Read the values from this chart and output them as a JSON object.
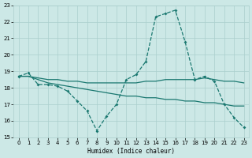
{
  "xlabel": "Humidex (Indice chaleur)",
  "xlim": [
    -0.5,
    23.5
  ],
  "ylim": [
    15,
    23
  ],
  "yticks": [
    15,
    16,
    17,
    18,
    19,
    20,
    21,
    22,
    23
  ],
  "xticks": [
    0,
    1,
    2,
    3,
    4,
    5,
    6,
    7,
    8,
    9,
    10,
    11,
    12,
    13,
    14,
    15,
    16,
    17,
    18,
    19,
    20,
    21,
    22,
    23
  ],
  "bg_color": "#cce8e6",
  "grid_color": "#aacfcd",
  "line_color": "#1a7870",
  "line1_x": [
    0,
    1,
    2,
    3,
    4,
    5,
    6,
    7,
    8,
    9,
    10,
    11,
    12,
    13,
    14,
    15,
    16,
    17,
    18,
    19,
    20,
    21,
    22,
    23
  ],
  "line1_y": [
    18.7,
    18.9,
    18.2,
    18.2,
    18.1,
    17.8,
    17.2,
    16.6,
    15.4,
    16.3,
    17.0,
    18.5,
    18.8,
    19.6,
    22.3,
    22.5,
    22.7,
    20.8,
    18.5,
    18.7,
    18.4,
    17.0,
    16.2,
    15.6
  ],
  "line2_x": [
    0,
    1,
    2,
    3,
    4,
    5,
    6,
    7,
    8,
    9,
    10,
    11,
    12,
    13,
    14,
    15,
    16,
    17,
    18,
    19,
    20,
    21,
    22,
    23
  ],
  "line2_y": [
    18.7,
    18.7,
    18.6,
    18.5,
    18.5,
    18.4,
    18.4,
    18.3,
    18.3,
    18.3,
    18.3,
    18.3,
    18.3,
    18.4,
    18.4,
    18.5,
    18.5,
    18.5,
    18.5,
    18.6,
    18.5,
    18.4,
    18.4,
    18.3
  ],
  "line3_x": [
    0,
    1,
    2,
    3,
    4,
    5,
    6,
    7,
    8,
    9,
    10,
    11,
    12,
    13,
    14,
    15,
    16,
    17,
    18,
    19,
    20,
    21,
    22,
    23
  ],
  "line3_y": [
    18.7,
    18.7,
    18.5,
    18.3,
    18.2,
    18.1,
    18.0,
    17.9,
    17.8,
    17.7,
    17.6,
    17.5,
    17.5,
    17.4,
    17.4,
    17.3,
    17.3,
    17.2,
    17.2,
    17.1,
    17.1,
    17.0,
    16.9,
    16.9
  ]
}
